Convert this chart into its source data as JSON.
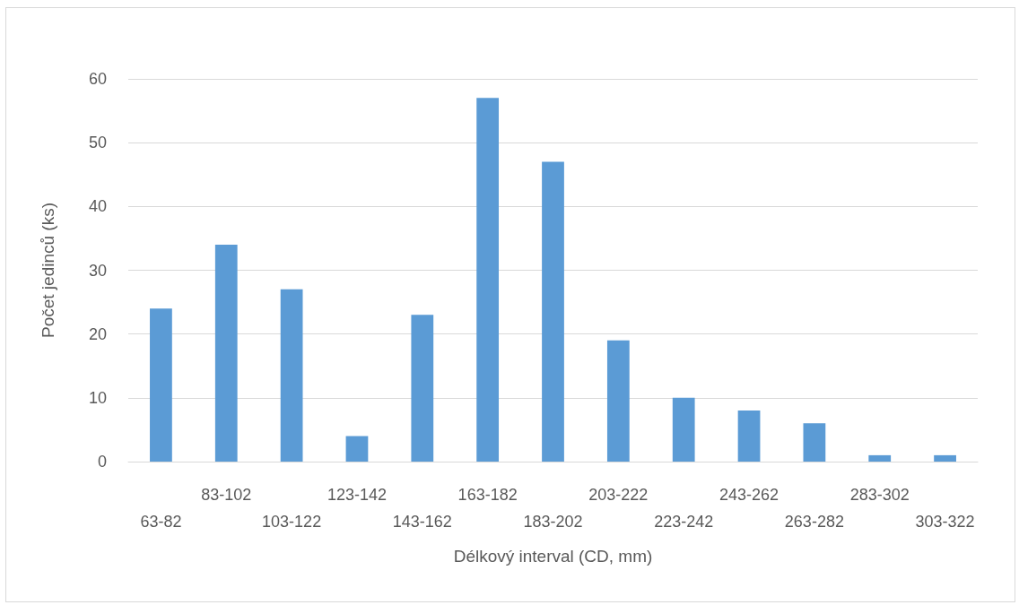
{
  "chart_data": {
    "type": "bar",
    "xlabel": "Délkový interval (CD, mm)",
    "ylabel": "Počet jedinců (ks)",
    "categories": [
      "63-82",
      "83-102",
      "103-122",
      "123-142",
      "143-162",
      "163-182",
      "183-202",
      "203-222",
      "223-242",
      "243-262",
      "263-282",
      "283-302",
      "303-322"
    ],
    "values": [
      24,
      34,
      27,
      4,
      23,
      57,
      47,
      19,
      10,
      8,
      6,
      1,
      1
    ],
    "color": "#5b9bd5",
    "ylim": [
      0,
      60
    ],
    "yticks": [
      0,
      10,
      20,
      30,
      40,
      50,
      60
    ],
    "grid": "y"
  }
}
